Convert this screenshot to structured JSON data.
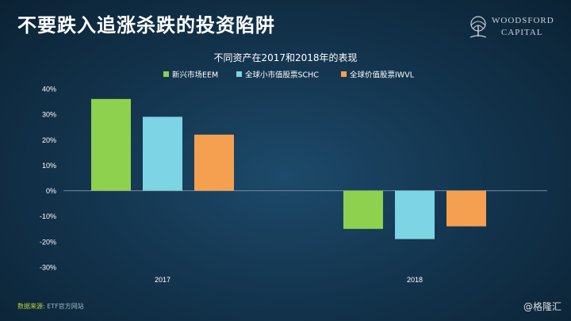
{
  "slide_title": "不要跌入追涨杀跌的投资陷阱",
  "logo": {
    "line1": "WOODSFORD",
    "line2": "CAPITAL"
  },
  "source": {
    "label": "数据来源:",
    "text": "ETF官方网站"
  },
  "watermark": "@格隆汇",
  "colors": {
    "EEM": "#8ed14f",
    "SCHC": "#7dd4e4",
    "IWVL": "#f5a050"
  },
  "chart_data": {
    "type": "bar",
    "title": "不同资产在2017和2018年的表现",
    "categories": [
      "2017",
      "2018"
    ],
    "series": [
      {
        "name": "新兴市场EEM",
        "values": [
          36,
          -15
        ]
      },
      {
        "name": "全球小市值股票SCHC",
        "values": [
          29,
          -19
        ]
      },
      {
        "name": "全球价值股票IWVL",
        "values": [
          22,
          -14
        ]
      }
    ],
    "ylim": [
      -30,
      40
    ],
    "yticks": [
      "-30%",
      "-20%",
      "-10%",
      "0%",
      "10%",
      "20%",
      "30%",
      "40%"
    ],
    "ytick_values": [
      -30,
      -20,
      -10,
      0,
      10,
      20,
      30,
      40
    ],
    "xlabel": "",
    "ylabel": "",
    "legend_position": "top-center",
    "grid": false
  }
}
